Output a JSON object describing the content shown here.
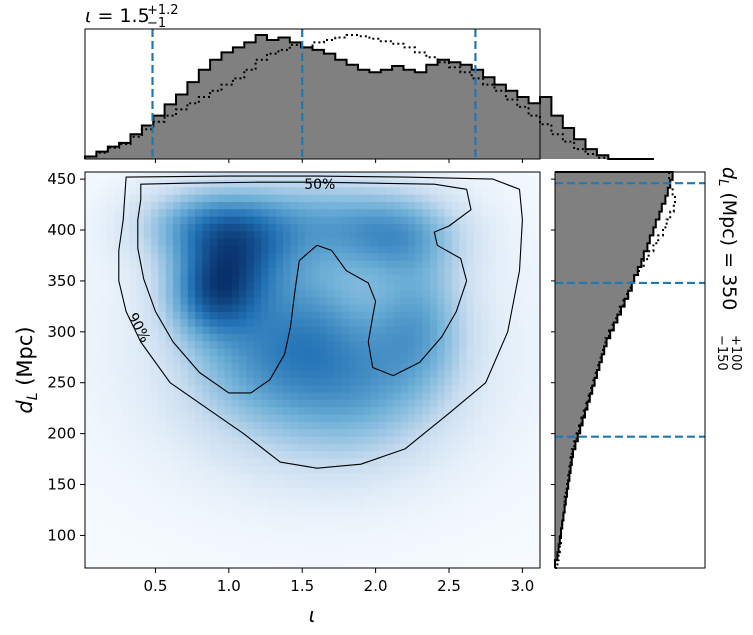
{
  "chart_data": [
    {
      "type": "heatmap",
      "panel": "joint",
      "xlabel": "ι",
      "ylabel_main": "d",
      "ylabel_sub": "L",
      "ylabel_unit": " (Mpc)",
      "xlim": [
        0.02,
        3.12
      ],
      "ylim": [
        68,
        457
      ],
      "xticks": [
        0.5,
        1.0,
        1.5,
        2.0,
        2.5,
        3.0
      ],
      "xticklabels": [
        "0.5",
        "1.0",
        "1.5",
        "2.0",
        "2.5",
        "3.0"
      ],
      "yticks": [
        100,
        150,
        200,
        250,
        300,
        350,
        400,
        450
      ],
      "yticklabels": [
        "100",
        "150",
        "200",
        "250",
        "300",
        "350",
        "400",
        "450"
      ],
      "colormap": "Blues",
      "density_blobs": [
        {
          "x": 0.9,
          "y": 340,
          "sx": 0.22,
          "sy": 30,
          "w": 1.0
        },
        {
          "x": 0.85,
          "y": 405,
          "sx": 0.32,
          "sy": 26,
          "w": 0.7
        },
        {
          "x": 1.1,
          "y": 375,
          "sx": 0.25,
          "sy": 30,
          "w": 0.55
        },
        {
          "x": 1.55,
          "y": 410,
          "sx": 0.45,
          "sy": 30,
          "w": 0.5
        },
        {
          "x": 2.15,
          "y": 395,
          "sx": 0.3,
          "sy": 28,
          "w": 0.6
        },
        {
          "x": 2.3,
          "y": 310,
          "sx": 0.22,
          "sy": 45,
          "w": 0.5
        },
        {
          "x": 1.2,
          "y": 280,
          "sx": 0.35,
          "sy": 45,
          "w": 0.45
        },
        {
          "x": 1.9,
          "y": 260,
          "sx": 0.35,
          "sy": 50,
          "w": 0.4
        },
        {
          "x": 1.55,
          "y": 320,
          "sx": 0.25,
          "sy": 45,
          "w": 0.3
        },
        {
          "x": 1.6,
          "y": 235,
          "sx": 0.55,
          "sy": 55,
          "w": 0.3
        },
        {
          "x": 1.6,
          "y": 300,
          "sx": 0.9,
          "sy": 95,
          "w": 0.22
        }
      ],
      "contour_labels": [
        "50%",
        "90%"
      ],
      "contour_50_outer": [
        [
          0.4,
          445
        ],
        [
          0.7,
          446
        ],
        [
          1.2,
          447
        ],
        [
          1.6,
          447
        ],
        [
          2.0,
          446
        ],
        [
          2.4,
          445
        ],
        [
          2.62,
          440
        ],
        [
          2.65,
          420
        ],
        [
          2.5,
          404
        ],
        [
          2.4,
          398
        ],
        [
          2.42,
          385
        ],
        [
          2.58,
          372
        ],
        [
          2.62,
          350
        ],
        [
          2.55,
          320
        ],
        [
          2.45,
          295
        ],
        [
          2.3,
          270
        ],
        [
          2.12,
          257
        ],
        [
          1.98,
          265
        ],
        [
          1.95,
          290
        ],
        [
          1.98,
          315
        ],
        [
          2.0,
          330
        ],
        [
          1.95,
          348
        ],
        [
          1.8,
          360
        ],
        [
          1.7,
          380
        ],
        [
          1.6,
          385
        ],
        [
          1.48,
          370
        ],
        [
          1.45,
          340
        ],
        [
          1.42,
          305
        ],
        [
          1.38,
          278
        ],
        [
          1.28,
          253
        ],
        [
          1.15,
          240
        ],
        [
          1.0,
          240
        ],
        [
          0.8,
          260
        ],
        [
          0.62,
          290
        ],
        [
          0.5,
          320
        ],
        [
          0.42,
          352
        ],
        [
          0.38,
          382
        ],
        [
          0.38,
          410
        ],
        [
          0.4,
          430
        ],
        [
          0.4,
          445
        ]
      ],
      "contour_50_labels_at": [
        [
          1.62,
          446
        ]
      ],
      "contour_90": [
        [
          0.3,
          452
        ],
        [
          1.0,
          453
        ],
        [
          1.6,
          453
        ],
        [
          2.2,
          452
        ],
        [
          2.8,
          450
        ],
        [
          2.98,
          440
        ],
        [
          3.0,
          410
        ],
        [
          2.98,
          360
        ],
        [
          2.9,
          300
        ],
        [
          2.75,
          250
        ],
        [
          2.5,
          220
        ],
        [
          2.2,
          185
        ],
        [
          1.9,
          170
        ],
        [
          1.6,
          166
        ],
        [
          1.35,
          172
        ],
        [
          1.1,
          200
        ],
        [
          0.85,
          225
        ],
        [
          0.6,
          250
        ],
        [
          0.4,
          290
        ],
        [
          0.3,
          320
        ],
        [
          0.25,
          350
        ],
        [
          0.25,
          380
        ],
        [
          0.28,
          410
        ],
        [
          0.3,
          452
        ]
      ],
      "contour_90_labels_at": [
        [
          0.36,
          302
        ]
      ]
    },
    {
      "type": "histogram",
      "panel": "top-marginal",
      "title_symbol": "ι",
      "title_value": "1.5",
      "title_upper": "+1.2",
      "title_lower": "−1",
      "xlim": [
        0.02,
        3.12
      ],
      "edges_start": 0.02,
      "bin_width": 0.0775,
      "filled_values": [
        0.02,
        0.06,
        0.1,
        0.13,
        0.2,
        0.27,
        0.35,
        0.44,
        0.52,
        0.62,
        0.72,
        0.8,
        0.86,
        0.9,
        0.94,
        1.0,
        0.96,
        0.98,
        0.94,
        0.9,
        0.88,
        0.85,
        0.8,
        0.76,
        0.72,
        0.7,
        0.72,
        0.75,
        0.72,
        0.7,
        0.76,
        0.8,
        0.78,
        0.76,
        0.72,
        0.66,
        0.6,
        0.55,
        0.5,
        0.45,
        0.5,
        0.35,
        0.25,
        0.16,
        0.08,
        0.03,
        0.0,
        0.0,
        0.0,
        0.0
      ],
      "dotted_values": [
        0.02,
        0.05,
        0.09,
        0.12,
        0.18,
        0.24,
        0.3,
        0.35,
        0.4,
        0.45,
        0.5,
        0.55,
        0.6,
        0.65,
        0.72,
        0.8,
        0.85,
        0.88,
        0.92,
        0.9,
        0.94,
        0.96,
        0.98,
        1.0,
        0.99,
        0.97,
        0.95,
        0.93,
        0.9,
        0.86,
        0.82,
        0.78,
        0.74,
        0.7,
        0.65,
        0.6,
        0.55,
        0.48,
        0.42,
        0.35,
        0.28,
        0.2,
        0.14,
        0.08,
        0.04,
        0.01,
        0.0,
        0.0,
        0.0,
        0.0
      ],
      "quantile_lines": [
        0.48,
        1.5,
        2.68
      ]
    },
    {
      "type": "histogram",
      "panel": "right-marginal",
      "orientation": "horizontal",
      "label_symbol": "d",
      "label_sub": "L",
      "label_unit": " (Mpc) = ",
      "label_value": "350",
      "label_upper": "+100",
      "label_lower": "−150",
      "ylim": [
        68,
        457
      ],
      "edges_start": 68,
      "bin_width": 7.78,
      "filled_values": [
        0.0,
        0.02,
        0.03,
        0.04,
        0.05,
        0.06,
        0.07,
        0.08,
        0.09,
        0.1,
        0.11,
        0.12,
        0.13,
        0.14,
        0.15,
        0.17,
        0.19,
        0.21,
        0.23,
        0.25,
        0.27,
        0.29,
        0.31,
        0.33,
        0.35,
        0.37,
        0.39,
        0.41,
        0.43,
        0.46,
        0.49,
        0.52,
        0.55,
        0.58,
        0.61,
        0.64,
        0.66,
        0.69,
        0.72,
        0.74,
        0.77,
        0.79,
        0.82,
        0.84,
        0.87,
        0.89,
        0.92,
        0.94,
        0.96,
        0.98
      ],
      "dotted_values": [
        0.02,
        0.03,
        0.04,
        0.05,
        0.05,
        0.06,
        0.07,
        0.08,
        0.08,
        0.09,
        0.1,
        0.11,
        0.12,
        0.13,
        0.14,
        0.16,
        0.18,
        0.2,
        0.22,
        0.24,
        0.26,
        0.28,
        0.3,
        0.32,
        0.34,
        0.36,
        0.38,
        0.4,
        0.42,
        0.45,
        0.48,
        0.51,
        0.54,
        0.57,
        0.6,
        0.63,
        0.66,
        0.7,
        0.74,
        0.78,
        0.82,
        0.86,
        0.9,
        0.93,
        0.96,
        0.99,
        1.0,
        0.98,
        0.96,
        0.95
      ],
      "quantile_lines": [
        197,
        348,
        446
      ]
    }
  ]
}
